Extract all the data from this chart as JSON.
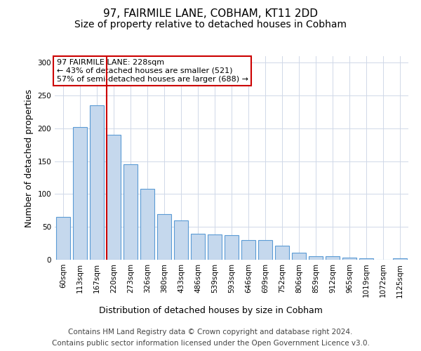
{
  "title1": "97, FAIRMILE LANE, COBHAM, KT11 2DD",
  "title2": "Size of property relative to detached houses in Cobham",
  "xlabel": "Distribution of detached houses by size in Cobham",
  "ylabel": "Number of detached properties",
  "categories": [
    "60sqm",
    "113sqm",
    "167sqm",
    "220sqm",
    "273sqm",
    "326sqm",
    "380sqm",
    "433sqm",
    "486sqm",
    "539sqm",
    "593sqm",
    "646sqm",
    "699sqm",
    "752sqm",
    "806sqm",
    "859sqm",
    "912sqm",
    "965sqm",
    "1019sqm",
    "1072sqm",
    "1125sqm"
  ],
  "values": [
    65,
    202,
    235,
    190,
    145,
    108,
    69,
    60,
    40,
    38,
    37,
    30,
    30,
    21,
    11,
    5,
    5,
    3,
    2,
    0,
    2
  ],
  "bar_color": "#c5d8ed",
  "bar_edge_color": "#5b9bd5",
  "vline_color": "#cc0000",
  "annotation_text": "97 FAIRMILE LANE: 228sqm\n← 43% of detached houses are smaller (521)\n57% of semi-detached houses are larger (688) →",
  "annotation_box_color": "#ffffff",
  "annotation_box_edge": "#cc0000",
  "ylim": [
    0,
    310
  ],
  "yticks": [
    0,
    50,
    100,
    150,
    200,
    250,
    300
  ],
  "footer1": "Contains HM Land Registry data © Crown copyright and database right 2024.",
  "footer2": "Contains public sector information licensed under the Open Government Licence v3.0.",
  "bg_color": "#ffffff",
  "grid_color": "#d0d8e8",
  "title1_fontsize": 11,
  "title2_fontsize": 10,
  "xlabel_fontsize": 9,
  "ylabel_fontsize": 9,
  "tick_fontsize": 7.5,
  "footer_fontsize": 7.5
}
